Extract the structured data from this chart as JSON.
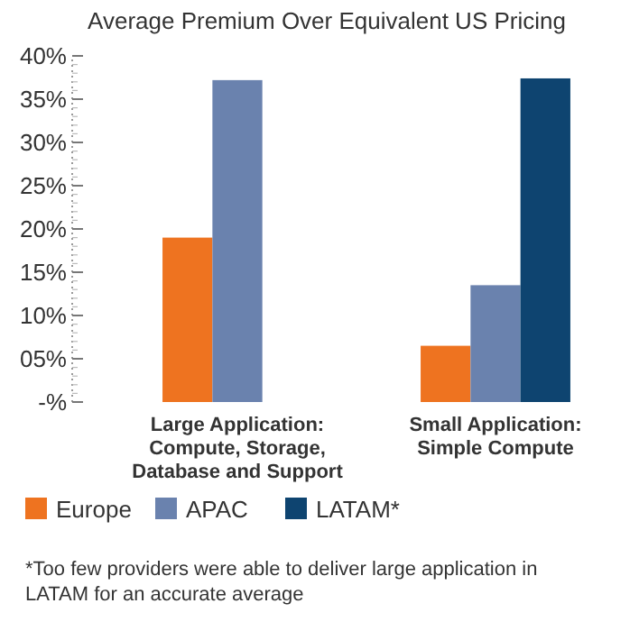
{
  "chart_data": {
    "type": "bar",
    "title": "Average Premium Over Equivalent US Pricing",
    "categories": [
      "Large Application: Compute, Storage, Database and Support",
      "Small Application: Simple Compute"
    ],
    "series": [
      {
        "name": "Europe",
        "color": "#ee7320",
        "values": [
          19,
          6.5
        ]
      },
      {
        "name": "APAC",
        "color": "#6a82ae",
        "values": [
          37.2,
          13.5
        ]
      },
      {
        "name": "LATAM*",
        "color": "#0e4470",
        "values": [
          null,
          37.4
        ]
      }
    ],
    "ylim": [
      0,
      40
    ],
    "yticks": [
      {
        "value": 0,
        "label": "-%"
      },
      {
        "value": 5,
        "label": "05%"
      },
      {
        "value": 10,
        "label": "10%"
      },
      {
        "value": 15,
        "label": "15%"
      },
      {
        "value": 20,
        "label": "20%"
      },
      {
        "value": 25,
        "label": "25%"
      },
      {
        "value": 30,
        "label": "30%"
      },
      {
        "value": 35,
        "label": "35%"
      },
      {
        "value": 40,
        "label": "40%"
      }
    ],
    "grid": false,
    "legend": "bottom",
    "annotations": [
      "*Too few providers were able to deliver large application in LATAM for an accurate average"
    ]
  }
}
